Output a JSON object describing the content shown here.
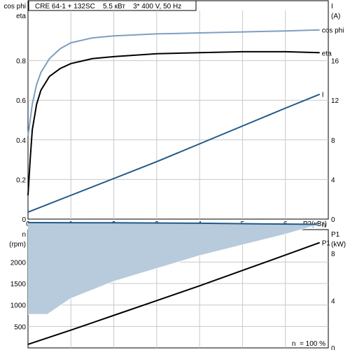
{
  "colors": {
    "eta": "#000000",
    "cos_phi": "#7f9fbf",
    "current": "#1f5a8c",
    "speed": "#1f5a8c",
    "speed_fill": "#b8cbdc",
    "p1": "#000000",
    "grid": "#c8c8c8"
  },
  "chart_data": [
    {
      "type": "line",
      "title": "CRE 64-1 + 132SC    5.5 кВт    3* 400 V, 50 Hz",
      "grid": true,
      "x_axis": {
        "label": "P2(кВт)",
        "ticks": [
          0,
          1,
          2,
          3,
          4,
          5,
          6
        ],
        "range": [
          0,
          7
        ]
      },
      "y_left": {
        "labels": [
          "cos phi",
          "eta"
        ],
        "ticks": [
          0,
          0.2,
          0.4,
          0.6,
          0.8
        ],
        "range": [
          0,
          1.0
        ]
      },
      "y_right": {
        "labels": [
          "I",
          "(A)"
        ],
        "ticks": [
          0,
          4,
          8,
          12,
          16
        ],
        "range": [
          0,
          20
        ]
      },
      "series": [
        {
          "name": "cos phi",
          "axis": "left",
          "x": [
            0,
            0.05,
            0.1,
            0.2,
            0.3,
            0.5,
            0.75,
            1.0,
            1.5,
            2.0,
            3.0,
            4.0,
            5.0,
            6.0,
            6.8
          ],
          "y": [
            0.42,
            0.5,
            0.58,
            0.68,
            0.74,
            0.81,
            0.86,
            0.89,
            0.915,
            0.925,
            0.935,
            0.94,
            0.945,
            0.95,
            0.955
          ]
        },
        {
          "name": "eta",
          "axis": "left",
          "x": [
            0,
            0.05,
            0.1,
            0.2,
            0.3,
            0.5,
            0.75,
            1.0,
            1.5,
            2.0,
            3.0,
            4.0,
            5.0,
            6.0,
            6.8
          ],
          "y": [
            0.12,
            0.3,
            0.45,
            0.58,
            0.65,
            0.72,
            0.76,
            0.785,
            0.81,
            0.82,
            0.835,
            0.84,
            0.845,
            0.845,
            0.84
          ]
        },
        {
          "name": "I",
          "axis": "right",
          "x": [
            0,
            1,
            2,
            3,
            4,
            5,
            6,
            6.8
          ],
          "y": [
            0.7,
            2.4,
            4.1,
            5.8,
            7.6,
            9.4,
            11.2,
            12.6
          ]
        }
      ]
    },
    {
      "type": "area",
      "grid": true,
      "footer": "n  = 100 %",
      "x_range": [
        0,
        7
      ],
      "y_left": {
        "labels": [
          "n",
          "(rpm)"
        ],
        "ticks": [
          500,
          1000,
          1500,
          2000
        ],
        "range": [
          0,
          3000
        ]
      },
      "y_right": {
        "labels": [
          "P1",
          "(kW)"
        ],
        "ticks": [
          0,
          4,
          8
        ],
        "range": [
          0,
          10
        ]
      },
      "series": [
        {
          "name": "n",
          "axis": "left",
          "kind": "max_speed",
          "x": [
            0,
            2,
            4,
            5.5,
            6.8
          ],
          "y": [
            2920,
            2915,
            2905,
            2890,
            2880
          ]
        },
        {
          "name": "",
          "axis": "left",
          "kind": "min_speed",
          "x": [
            0,
            0.45,
            1.0,
            2.0,
            3.0,
            4.0,
            5.0,
            6.0,
            6.8
          ],
          "y": [
            780,
            780,
            1150,
            1550,
            1850,
            2150,
            2400,
            2650,
            2880
          ]
        },
        {
          "name": "P1",
          "axis": "right",
          "x": [
            0,
            1,
            2,
            3,
            4,
            5,
            6,
            6.8
          ],
          "y": [
            0.3,
            1.5,
            2.75,
            4.0,
            5.25,
            6.55,
            7.85,
            8.9
          ]
        }
      ]
    }
  ]
}
